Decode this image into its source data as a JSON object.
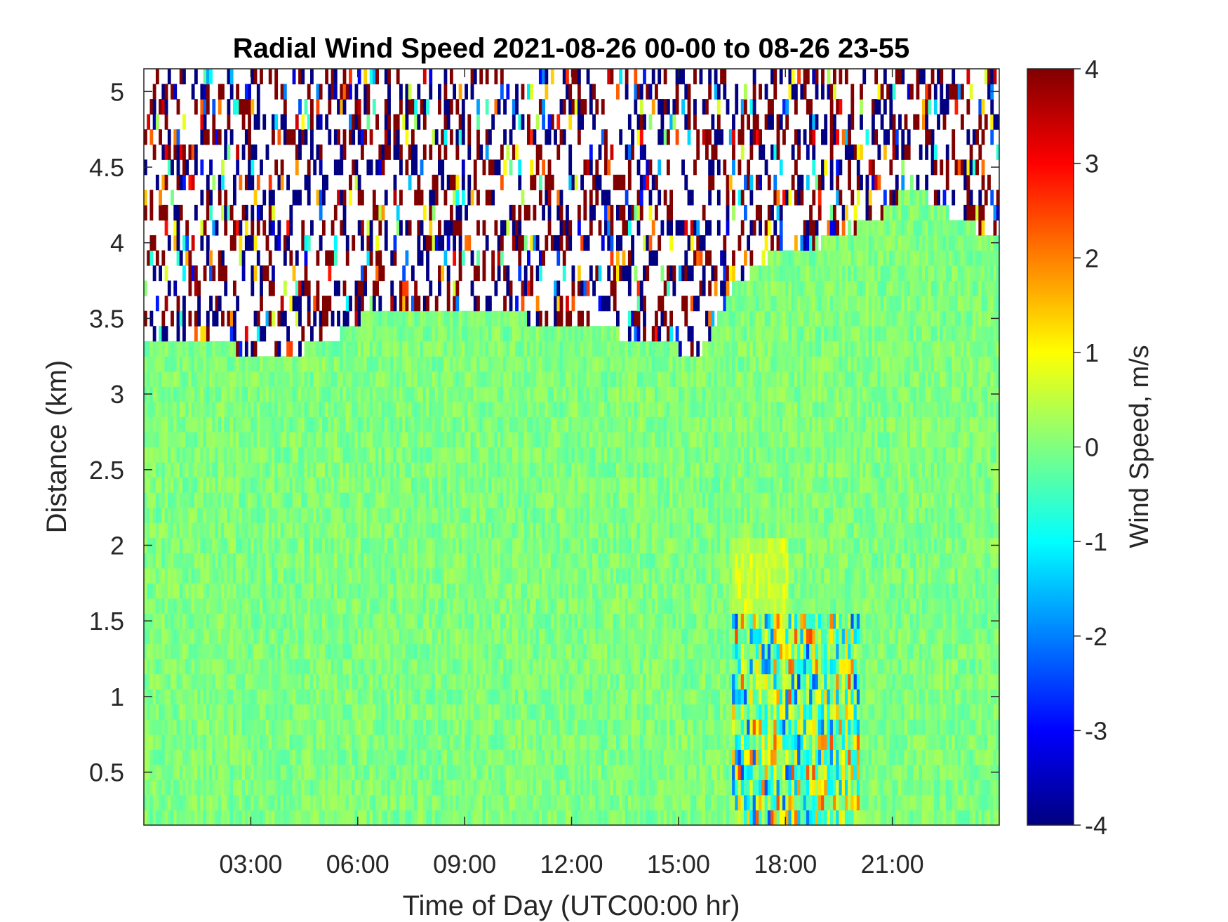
{
  "chart_data": {
    "type": "heatmap",
    "title": "Radial Wind Speed 2021-08-26 00-00 to 08-26 23-55",
    "xlabel": "Time of Day (UTC00:00 hr)",
    "ylabel": "Distance (km)",
    "xlim_hours": [
      0.0,
      24.0
    ],
    "ylim": [
      0.15,
      5.15
    ],
    "x_ticks": [
      {
        "hour": 3,
        "label": "03:00"
      },
      {
        "hour": 6,
        "label": "06:00"
      },
      {
        "hour": 9,
        "label": "09:00"
      },
      {
        "hour": 12,
        "label": "12:00"
      },
      {
        "hour": 15,
        "label": "15:00"
      },
      {
        "hour": 18,
        "label": "18:00"
      },
      {
        "hour": 21,
        "label": "21:00"
      }
    ],
    "y_ticks": [
      {
        "value": 0.5,
        "label": "0.5"
      },
      {
        "value": 1,
        "label": "1"
      },
      {
        "value": 1.5,
        "label": "1.5"
      },
      {
        "value": 2,
        "label": "2"
      },
      {
        "value": 2.5,
        "label": "2.5"
      },
      {
        "value": 3,
        "label": "3"
      },
      {
        "value": 3.5,
        "label": "3.5"
      },
      {
        "value": 4,
        "label": "4"
      },
      {
        "value": 4.5,
        "label": "4.5"
      },
      {
        "value": 5,
        "label": "5"
      }
    ],
    "colorbar": {
      "label": "Wind Speed, m/s",
      "min": -4,
      "max": 4,
      "colormap": "jet",
      "ticks": [
        {
          "value": 4,
          "label": "4"
        },
        {
          "value": 3,
          "label": "3"
        },
        {
          "value": 2,
          "label": "2"
        },
        {
          "value": 1,
          "label": "1"
        },
        {
          "value": 0,
          "label": "0"
        },
        {
          "value": -1,
          "label": "-1"
        },
        {
          "value": -2,
          "label": "-2"
        },
        {
          "value": -3,
          "label": "-3"
        },
        {
          "value": -4,
          "label": "-4"
        }
      ]
    },
    "valid_data_top_km": [
      {
        "hour": 0.0,
        "km": 3.35
      },
      {
        "hour": 2.5,
        "km": 3.35
      },
      {
        "hour": 4.0,
        "km": 3.3
      },
      {
        "hour": 5.5,
        "km": 3.45
      },
      {
        "hour": 6.0,
        "km": 3.55
      },
      {
        "hour": 7.0,
        "km": 3.65
      },
      {
        "hour": 9.5,
        "km": 3.6
      },
      {
        "hour": 12.0,
        "km": 3.5
      },
      {
        "hour": 14.5,
        "km": 3.4
      },
      {
        "hour": 15.5,
        "km": 3.3
      },
      {
        "hour": 16.5,
        "km": 3.75
      },
      {
        "hour": 17.5,
        "km": 3.95
      },
      {
        "hour": 19.0,
        "km": 4.05
      },
      {
        "hour": 20.5,
        "km": 4.2
      },
      {
        "hour": 21.5,
        "km": 4.45
      },
      {
        "hour": 22.5,
        "km": 4.25
      },
      {
        "hour": 24.0,
        "km": 4.05
      }
    ],
    "typical_value_mps": 0.0,
    "notable_regions": [
      {
        "hours": [
          16.5,
          20.0
        ],
        "km": [
          0.15,
          1.5
        ],
        "values_mps": [
          -2.5,
          2.5
        ]
      },
      {
        "hours": [
          16.5,
          18.0
        ],
        "km": [
          1.5,
          2.0
        ],
        "values_mps": [
          0.5,
          1.0
        ]
      }
    ]
  }
}
